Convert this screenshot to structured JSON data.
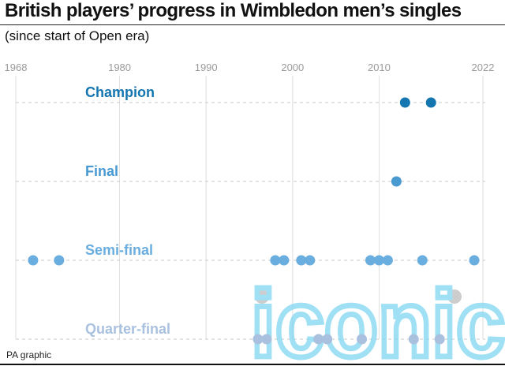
{
  "title": "British players’ progress in Wimbledon men’s singles",
  "subtitle": "(since start of Open era)",
  "footer": "PA graphic",
  "watermark_text": "iconic",
  "colors": {
    "champion": "#1476b0",
    "final": "#4a9ad2",
    "semi": "#6aaedf",
    "quarter": "#a9c1df",
    "axis": "#9a9a9a",
    "dash": "#c8c8c8",
    "watermark": "#7fd6f2"
  },
  "chart_data": {
    "type": "scatter",
    "xlim": [
      1968,
      2022
    ],
    "xticks": [
      1968,
      1980,
      1990,
      2000,
      2010,
      2022
    ],
    "rows": [
      {
        "label": "Champion",
        "years": [
          2013,
          2016
        ]
      },
      {
        "label": "Final",
        "years": [
          2012
        ]
      },
      {
        "label": "Semi-final",
        "years": [
          1970,
          1973,
          1998,
          1999,
          2001,
          2002,
          2009,
          2010,
          2011,
          2015,
          2021
        ]
      },
      {
        "label": "Quarter-final",
        "years": [
          1996,
          1997,
          2003,
          2004,
          2008,
          2014,
          2017
        ]
      }
    ]
  }
}
